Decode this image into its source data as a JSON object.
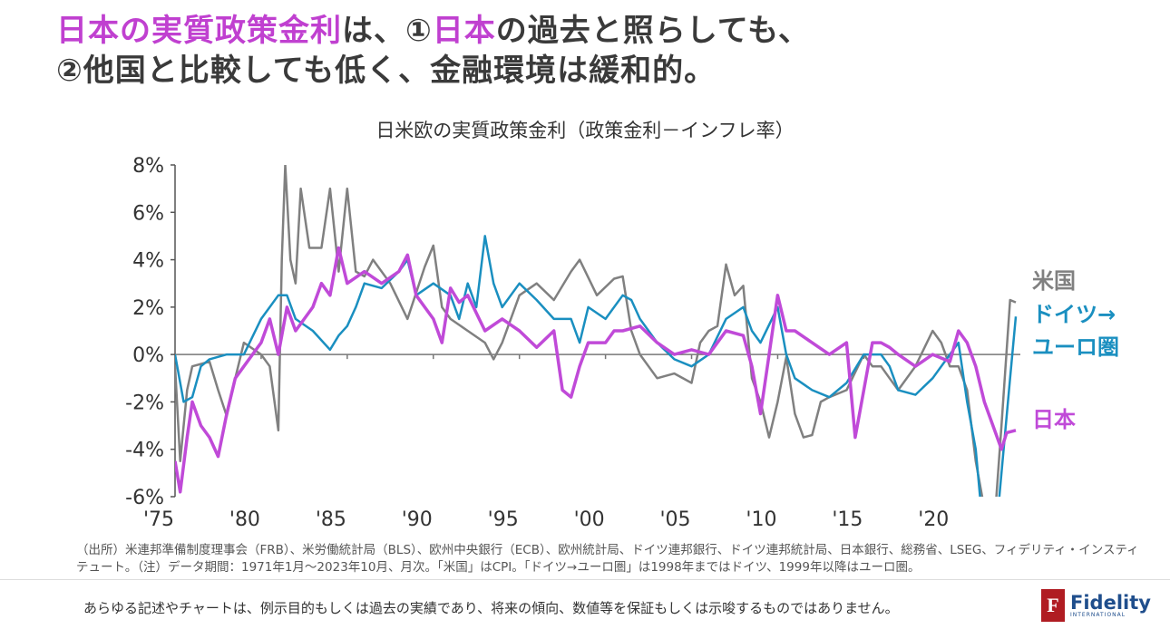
{
  "title": {
    "line1": [
      {
        "text": "日本の実質政策金利",
        "highlight": true
      },
      {
        "text": "は、①",
        "highlight": false
      },
      {
        "text": "日本",
        "highlight": true
      },
      {
        "text": "の過去と照らしても、",
        "highlight": false
      }
    ],
    "line2": "②他国と比較しても低く、金融環境は緩和的。"
  },
  "colors": {
    "accent": "#c040d0",
    "us": "#808080",
    "eu": "#1a8fc0",
    "jp": "#c04ad8",
    "logo": "#b01c22"
  },
  "chart_data": {
    "type": "line",
    "title": "日米欧の実質政策金利（政策金利－インフレ率）",
    "xlabel": "",
    "ylabel": "",
    "xlim": [
      1975,
      2023.83
    ],
    "ylim": [
      -6,
      8
    ],
    "yticks": [
      8,
      6,
      4,
      2,
      0,
      -2,
      -4,
      -6
    ],
    "ytick_labels": [
      "8%",
      "6%",
      "4%",
      "2%",
      "0%",
      "-2%",
      "-4%",
      "-6%"
    ],
    "xticks": [
      1975,
      1980,
      1985,
      1990,
      1995,
      2000,
      2005,
      2010,
      2015,
      2020
    ],
    "xtick_labels": [
      "'75",
      "'80",
      "'85",
      "'90",
      "'95",
      "'00",
      "'05",
      "'10",
      "'15",
      "'20"
    ],
    "grid": false,
    "legend_placement": "right",
    "series": [
      {
        "name": "米国",
        "color": "#808080",
        "points": [
          [
            1975,
            -0.5
          ],
          [
            1975.3,
            -4.5
          ],
          [
            1975.7,
            -1.5
          ],
          [
            1976,
            -0.5
          ],
          [
            1977,
            -0.3
          ],
          [
            1977.5,
            -1.5
          ],
          [
            1978,
            -2.6
          ],
          [
            1978.5,
            -1.0
          ],
          [
            1979,
            0.5
          ],
          [
            1980,
            0.0
          ],
          [
            1980.5,
            -0.5
          ],
          [
            1981,
            -3.2
          ],
          [
            1981.2,
            4
          ],
          [
            1981.4,
            8
          ],
          [
            1981.7,
            4
          ],
          [
            1982,
            3
          ],
          [
            1982.3,
            7
          ],
          [
            1982.8,
            4.5
          ],
          [
            1983.5,
            4.5
          ],
          [
            1984,
            7
          ],
          [
            1984.5,
            3.5
          ],
          [
            1985,
            7
          ],
          [
            1985.5,
            3.5
          ],
          [
            1986,
            3.3
          ],
          [
            1986.5,
            4
          ],
          [
            1987.5,
            3
          ],
          [
            1988.5,
            1.5
          ],
          [
            1989.5,
            3.7
          ],
          [
            1990,
            4.6
          ],
          [
            1990.5,
            2
          ],
          [
            1991,
            1.5
          ],
          [
            1992,
            1.0
          ],
          [
            1993,
            0.5
          ],
          [
            1993.5,
            -0.2
          ],
          [
            1994,
            0.5
          ],
          [
            1995,
            2.5
          ],
          [
            1996,
            3
          ],
          [
            1997,
            2.3
          ],
          [
            1998,
            3.5
          ],
          [
            1998.5,
            4
          ],
          [
            1999.5,
            2.5
          ],
          [
            2000.5,
            3.2
          ],
          [
            2001,
            3.3
          ],
          [
            2001.5,
            1.0
          ],
          [
            2002,
            0
          ],
          [
            2003,
            -1
          ],
          [
            2004,
            -0.8
          ],
          [
            2005,
            -1.2
          ],
          [
            2005.5,
            0.5
          ],
          [
            2006,
            1.0
          ],
          [
            2006.5,
            1.2
          ],
          [
            2007,
            3.8
          ],
          [
            2007.5,
            2.5
          ],
          [
            2008,
            2.9
          ],
          [
            2008.5,
            -1
          ],
          [
            2009,
            -2
          ],
          [
            2009.5,
            -3.5
          ],
          [
            2010,
            -2
          ],
          [
            2010.5,
            -0.1
          ],
          [
            2011,
            -2.5
          ],
          [
            2011.5,
            -3.5
          ],
          [
            2012,
            -3.4
          ],
          [
            2012.5,
            -2
          ],
          [
            2013,
            -1.8
          ],
          [
            2014,
            -1.5
          ],
          [
            2015,
            0
          ],
          [
            2015.5,
            -0.5
          ],
          [
            2016,
            -0.5
          ],
          [
            2016.5,
            -1
          ],
          [
            2017,
            -1.5
          ],
          [
            2018,
            -0.5
          ],
          [
            2019,
            1.0
          ],
          [
            2019.5,
            0.5
          ],
          [
            2020,
            -0.5
          ],
          [
            2020.5,
            -0.5
          ],
          [
            2021,
            -1.5
          ],
          [
            2021.5,
            -4.5
          ],
          [
            2022,
            -6.5
          ],
          [
            2022.5,
            -8
          ],
          [
            2023,
            -3
          ],
          [
            2023.5,
            2.3
          ],
          [
            2023.83,
            2.2
          ]
        ]
      },
      {
        "name": "ドイツ→ユーロ圏",
        "color": "#1a8fc0",
        "points": [
          [
            1975,
            0
          ],
          [
            1975.5,
            -2
          ],
          [
            1976,
            -1.8
          ],
          [
            1976.5,
            -0.5
          ],
          [
            1977,
            -0.2
          ],
          [
            1978,
            0
          ],
          [
            1979,
            0
          ],
          [
            1980,
            1.5
          ],
          [
            1981,
            2.5
          ],
          [
            1981.5,
            2.5
          ],
          [
            1982,
            1.5
          ],
          [
            1983,
            1.0
          ],
          [
            1984,
            0.2
          ],
          [
            1984.5,
            0.8
          ],
          [
            1985,
            1.2
          ],
          [
            1985.5,
            2.0
          ],
          [
            1986,
            3
          ],
          [
            1987,
            2.8
          ],
          [
            1988,
            3.5
          ],
          [
            1988.5,
            4
          ],
          [
            1989,
            2.5
          ],
          [
            1990,
            3
          ],
          [
            1991,
            2.5
          ],
          [
            1991.5,
            1.5
          ],
          [
            1992,
            3.0
          ],
          [
            1992.5,
            2.0
          ],
          [
            1993,
            5.0
          ],
          [
            1993.5,
            3
          ],
          [
            1994,
            2.0
          ],
          [
            1995,
            3
          ],
          [
            1996,
            2.3
          ],
          [
            1997,
            1.5
          ],
          [
            1998,
            1.5
          ],
          [
            1998.5,
            0.5
          ],
          [
            1999,
            2
          ],
          [
            2000,
            1.5
          ],
          [
            2001,
            2.5
          ],
          [
            2001.5,
            2.3
          ],
          [
            2002,
            1.5
          ],
          [
            2003,
            0.5
          ],
          [
            2004,
            -0.2
          ],
          [
            2005,
            -0.5
          ],
          [
            2006,
            0
          ],
          [
            2007,
            1.5
          ],
          [
            2008,
            2.0
          ],
          [
            2008.5,
            1.0
          ],
          [
            2009,
            0.5
          ],
          [
            2010,
            2.0
          ],
          [
            2010.5,
            0.0
          ],
          [
            2011,
            -1.0
          ],
          [
            2012,
            -1.5
          ],
          [
            2013,
            -1.8
          ],
          [
            2014,
            -1.2
          ],
          [
            2015,
            0
          ],
          [
            2016,
            0
          ],
          [
            2016.5,
            -0.5
          ],
          [
            2017,
            -1.5
          ],
          [
            2018,
            -1.7
          ],
          [
            2019,
            -1.0
          ],
          [
            2020,
            0
          ],
          [
            2020.5,
            0.5
          ],
          [
            2021,
            -2
          ],
          [
            2021.5,
            -4
          ],
          [
            2022,
            -8
          ],
          [
            2022.5,
            -9
          ],
          [
            2023,
            -5
          ],
          [
            2023.5,
            -1
          ],
          [
            2023.83,
            1.6
          ]
        ]
      },
      {
        "name": "日本",
        "color": "#c04ad8",
        "points": [
          [
            1975,
            -4.5
          ],
          [
            1975.3,
            -5.8
          ],
          [
            1975.7,
            -3.5
          ],
          [
            1976,
            -2
          ],
          [
            1976.5,
            -3
          ],
          [
            1977,
            -3.5
          ],
          [
            1977.5,
            -4.3
          ],
          [
            1978,
            -2.5
          ],
          [
            1978.5,
            -1
          ],
          [
            1979,
            -0.5
          ],
          [
            1980,
            0.5
          ],
          [
            1980.5,
            1.5
          ],
          [
            1981,
            0
          ],
          [
            1981.5,
            2
          ],
          [
            1982,
            1.0
          ],
          [
            1983,
            2.0
          ],
          [
            1983.5,
            3.0
          ],
          [
            1984,
            2.5
          ],
          [
            1984.5,
            4.5
          ],
          [
            1985,
            3
          ],
          [
            1986,
            3.5
          ],
          [
            1987,
            3.0
          ],
          [
            1988,
            3.5
          ],
          [
            1988.5,
            4.2
          ],
          [
            1989,
            2.5
          ],
          [
            1990,
            1.5
          ],
          [
            1990.5,
            0.5
          ],
          [
            1991,
            2.8
          ],
          [
            1991.5,
            2.2
          ],
          [
            1992,
            2.5
          ],
          [
            1993,
            1.0
          ],
          [
            1994,
            1.5
          ],
          [
            1995,
            1.0
          ],
          [
            1996,
            0.3
          ],
          [
            1997,
            1.0
          ],
          [
            1997.5,
            -1.5
          ],
          [
            1998,
            -1.8
          ],
          [
            1998.5,
            -0.5
          ],
          [
            1999,
            0.5
          ],
          [
            2000,
            0.5
          ],
          [
            2000.5,
            1.0
          ],
          [
            2001,
            1.0
          ],
          [
            2002,
            1.2
          ],
          [
            2003,
            0.5
          ],
          [
            2004,
            0.0
          ],
          [
            2005,
            0.2
          ],
          [
            2006,
            0.0
          ],
          [
            2007,
            1.0
          ],
          [
            2008,
            0.8
          ],
          [
            2008.5,
            -0.5
          ],
          [
            2009,
            -2.5
          ],
          [
            2009.5,
            0
          ],
          [
            2010,
            2.5
          ],
          [
            2010.5,
            1.0
          ],
          [
            2011,
            1.0
          ],
          [
            2012,
            0.5
          ],
          [
            2013,
            0.0
          ],
          [
            2014,
            0.5
          ],
          [
            2014.5,
            -3.5
          ],
          [
            2015,
            -1.5
          ],
          [
            2015.5,
            0.5
          ],
          [
            2016,
            0.5
          ],
          [
            2016.5,
            0.3
          ],
          [
            2017,
            0
          ],
          [
            2018,
            -0.5
          ],
          [
            2019,
            0
          ],
          [
            2020,
            -0.3
          ],
          [
            2020.5,
            1.0
          ],
          [
            2021,
            0.5
          ],
          [
            2021.5,
            -0.5
          ],
          [
            2022,
            -2
          ],
          [
            2022.5,
            -3
          ],
          [
            2023,
            -4
          ],
          [
            2023.3,
            -3.3
          ],
          [
            2023.83,
            -3.2
          ]
        ]
      }
    ]
  },
  "legend": {
    "us": "米国",
    "eu_line1": "ドイツ→",
    "eu_line2": "ユーロ圏",
    "jp": "日本"
  },
  "source": "（出所）米連邦準備制度理事会（FRB）、米労働統計局（BLS）、欧州中央銀行（ECB）、欧州統計局、ドイツ連邦銀行、ドイツ連邦統計局、日本銀行、総務省、LSEG、フィデリティ・インスティテュート。（注）データ期間：1971年1月～2023年10月、月次。「米国」はCPI。「ドイツ→ユーロ圏」は1998年まではドイツ、1999年以降はユーロ圏。",
  "disclaimer": "あらゆる記述やチャートは、例示目的もしくは過去の実績であり、将来の傾向、数値等を保証もしくは示唆するものではありません。",
  "logo": {
    "name": "Fidelity",
    "sub": "INTERNATIONAL",
    "mark": "F"
  }
}
